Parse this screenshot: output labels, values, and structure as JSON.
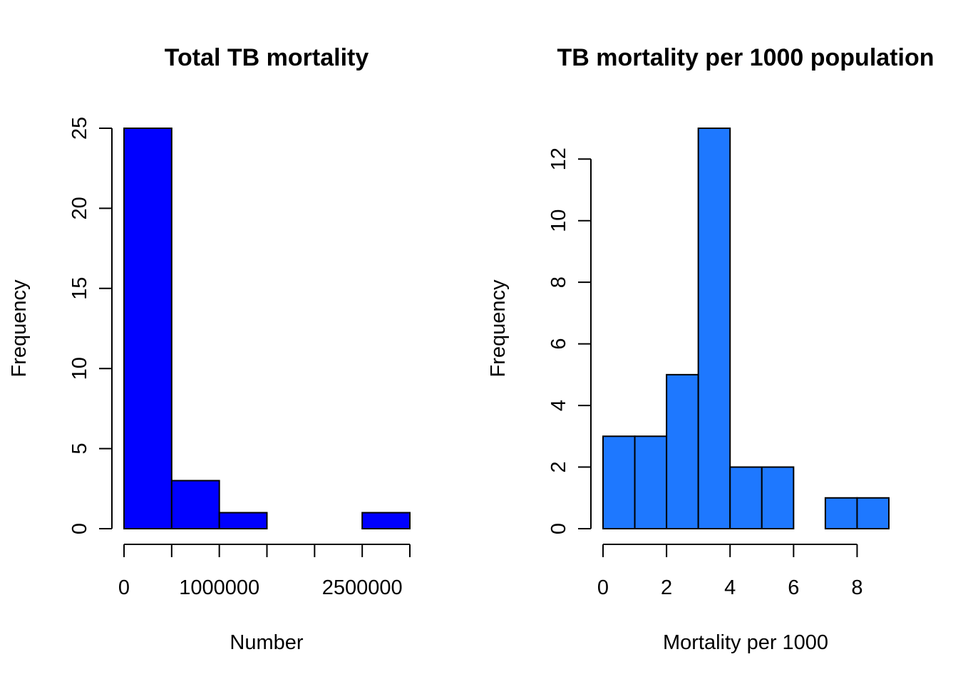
{
  "chart_data": [
    {
      "type": "bar",
      "subtype": "histogram",
      "title": "Total TB mortality",
      "xlabel": "Number",
      "ylabel": "Frequency",
      "bar_color": "#0000FF",
      "bins": [
        [
          0,
          500000
        ],
        [
          500000,
          1000000
        ],
        [
          1000000,
          1500000
        ],
        [
          1500000,
          2000000
        ],
        [
          2000000,
          2500000
        ],
        [
          2500000,
          3000000
        ]
      ],
      "values": [
        25,
        3,
        1,
        0,
        0,
        1
      ],
      "xlim": [
        0,
        3000000
      ],
      "ylim": [
        0,
        25
      ],
      "x_ticks": [
        0,
        500000,
        1000000,
        1500000,
        2000000,
        2500000,
        3000000
      ],
      "x_tick_labels": [
        {
          "value": 0,
          "label": "0"
        },
        {
          "value": 1000000,
          "label": "1000000"
        },
        {
          "value": 2500000,
          "label": "2500000"
        }
      ],
      "y_ticks": [
        0,
        5,
        10,
        15,
        20,
        25
      ],
      "y_tick_labels": [
        "0",
        "5",
        "10",
        "15",
        "20",
        "25"
      ],
      "grid": false
    },
    {
      "type": "bar",
      "subtype": "histogram",
      "title": "TB mortality per 1000 population",
      "xlabel": "Mortality per 1000",
      "ylabel": "Frequency",
      "bar_color": "#1E78FF",
      "bins": [
        [
          0,
          1
        ],
        [
          1,
          2
        ],
        [
          2,
          3
        ],
        [
          3,
          4
        ],
        [
          4,
          5
        ],
        [
          5,
          6
        ],
        [
          6,
          7
        ],
        [
          7,
          8
        ],
        [
          8,
          9
        ]
      ],
      "values": [
        3,
        3,
        5,
        13,
        2,
        2,
        0,
        1,
        1
      ],
      "xlim": [
        0,
        9
      ],
      "ylim": [
        0,
        13
      ],
      "x_ticks": [
        0,
        2,
        4,
        6,
        8
      ],
      "x_tick_labels": [
        {
          "value": 0,
          "label": "0"
        },
        {
          "value": 2,
          "label": "2"
        },
        {
          "value": 4,
          "label": "4"
        },
        {
          "value": 6,
          "label": "6"
        },
        {
          "value": 8,
          "label": "8"
        }
      ],
      "y_ticks": [
        0,
        2,
        4,
        6,
        8,
        10,
        12
      ],
      "y_tick_labels": [
        "0",
        "2",
        "4",
        "6",
        "8",
        "10",
        "12"
      ],
      "grid": false
    }
  ]
}
